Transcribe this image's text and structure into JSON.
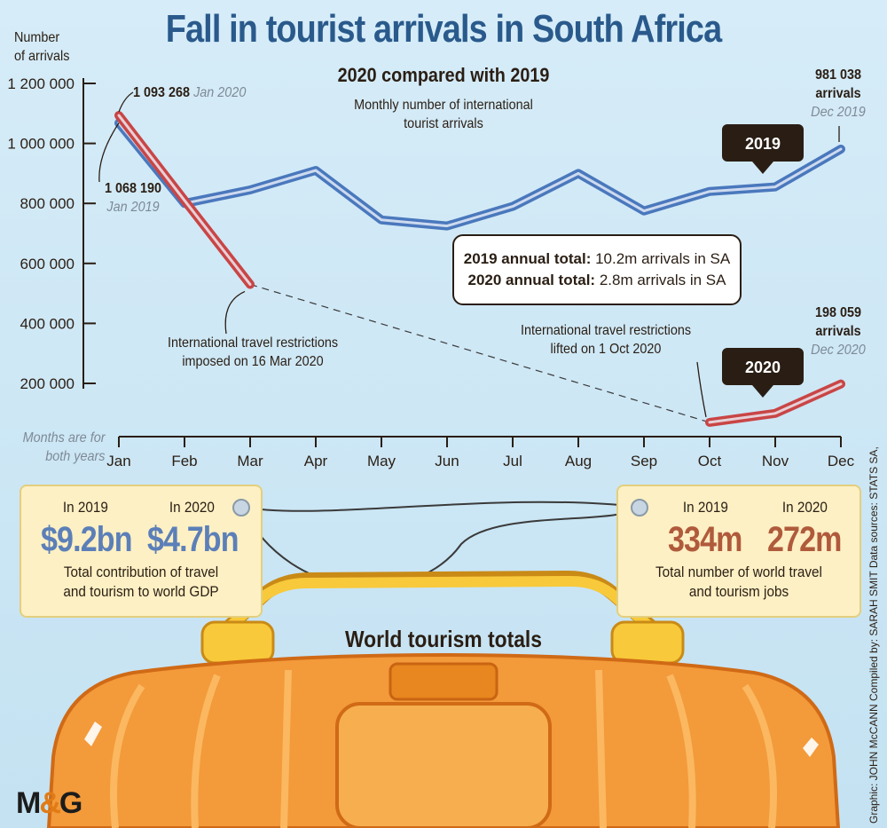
{
  "title": "Fall in tourist arrivals in South Africa",
  "subtitle": "2020 compared with 2019",
  "description": [
    "Monthly number of international",
    "tourist arrivals"
  ],
  "y_axis_label": [
    "Number",
    "of arrivals"
  ],
  "x_axis_note": [
    "Months are for",
    "both years"
  ],
  "chart_data": {
    "type": "line",
    "title": "Fall in tourist arrivals in South Africa",
    "subtitle": "2020 compared with 2019",
    "xlabel": "",
    "ylabel": "Number of arrivals",
    "categories": [
      "Jan",
      "Feb",
      "Mar",
      "Apr",
      "May",
      "Jun",
      "Jul",
      "Aug",
      "Sep",
      "Oct",
      "Nov",
      "Dec"
    ],
    "ylim": [
      200000,
      1200000
    ],
    "yticks": [
      200000,
      400000,
      600000,
      800000,
      1000000,
      1200000
    ],
    "ytick_labels": [
      "200 000",
      "400 000",
      "600 000",
      "800 000",
      "1 000 000",
      "1 200 000"
    ],
    "grid": false,
    "series": [
      {
        "name": "2019",
        "color": "#4a78bd",
        "values": [
          1068190,
          800000,
          845000,
          910000,
          745000,
          725000,
          790000,
          900000,
          775000,
          840000,
          855000,
          981038
        ]
      },
      {
        "name": "2020",
        "color": "#c94545",
        "values": [
          1093268,
          810000,
          530000,
          null,
          null,
          null,
          null,
          null,
          null,
          70000,
          100000,
          198059
        ]
      }
    ]
  },
  "annotations": {
    "jan2020_value": "1 093 268",
    "jan2020_label": "Jan 2020",
    "jan2019_value": "1 068 190",
    "jan2019_label": "Jan 2019",
    "dec2019_value": "981 038",
    "dec2019_unit": "arrivals",
    "dec2019_label": "Dec 2019",
    "dec2020_value": "198 059",
    "dec2020_unit": "arrivals",
    "dec2020_label": "Dec 2020",
    "restrictions_imposed": [
      "International travel restrictions",
      "imposed on 16 Mar 2020"
    ],
    "restrictions_lifted": [
      "International travel restrictions",
      "lifted on 1 Oct 2020"
    ],
    "badge_2019": "2019",
    "badge_2020": "2020"
  },
  "totals": {
    "line1_bold": "2019 annual total:",
    "line1_text": " 10.2m arrivals in SA",
    "line2_bold": "2020 annual total:",
    "line2_text": " 2.8m arrivals in SA"
  },
  "gdp_card": {
    "year_a": "In 2019",
    "value_a": "$9.2bn",
    "year_b": "In 2020",
    "value_b": "$4.7bn",
    "caption": [
      "Total contribution of travel",
      "and tourism to world GDP"
    ]
  },
  "jobs_card": {
    "year_a": "In 2019",
    "value_a": "334m",
    "year_b": "In 2020",
    "value_b": "272m",
    "caption": [
      "Total number of world travel",
      "and tourism jobs"
    ]
  },
  "suitcase_label": "World tourism totals",
  "credit": "Graphic: JOHN McCANN  Compiled by: SARAH SMIT  Data sources: STATS SA,",
  "logo": {
    "left": "M",
    "amp": "&",
    "right": "G"
  },
  "colors": {
    "title": "#2a5a8c",
    "line2019": "#4a78bd",
    "line2020": "#c94545",
    "gdp_value": "#5b7fb8",
    "jobs_value": "#b05a3c",
    "suitcase": "#f39a3a"
  }
}
